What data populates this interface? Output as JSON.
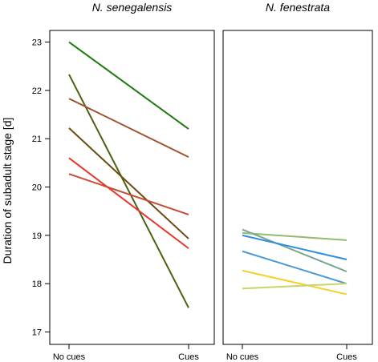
{
  "chart_data": {
    "type": "line",
    "ylabel": "Duration of subadult stage [d]",
    "ylim": [
      16.8,
      23.3
    ],
    "yticks": [
      17,
      18,
      19,
      20,
      21,
      22,
      23
    ],
    "x_categories": [
      "No cues",
      "Cues"
    ],
    "grid": false,
    "panels": [
      {
        "title": "N. senegalensis",
        "series": [
          {
            "color": "#1e7a0e",
            "values": [
              23.0,
              21.2
            ]
          },
          {
            "color": "#4a6212",
            "values": [
              22.33,
              17.5
            ]
          },
          {
            "color": "#a0522d",
            "values": [
              21.83,
              20.62
            ]
          },
          {
            "color": "#6b4a12",
            "values": [
              21.22,
              18.93
            ]
          },
          {
            "color": "#e8342a",
            "values": [
              20.6,
              18.73
            ]
          },
          {
            "color": "#c84b32",
            "values": [
              20.27,
              19.43
            ]
          }
        ]
      },
      {
        "title": "N. fenestrata",
        "series": [
          {
            "color": "#8fbc6e",
            "values": [
              19.05,
              18.9
            ]
          },
          {
            "color": "#7aa88e",
            "values": [
              19.12,
              18.25
            ]
          },
          {
            "color": "#2f8ede",
            "values": [
              19.0,
              18.5
            ]
          },
          {
            "color": "#4a9ad8",
            "values": [
              18.67,
              18.0
            ]
          },
          {
            "color": "#f2d22a",
            "values": [
              18.27,
              17.78
            ]
          },
          {
            "color": "#c9d46a",
            "values": [
              17.9,
              18.0
            ]
          }
        ]
      }
    ]
  }
}
